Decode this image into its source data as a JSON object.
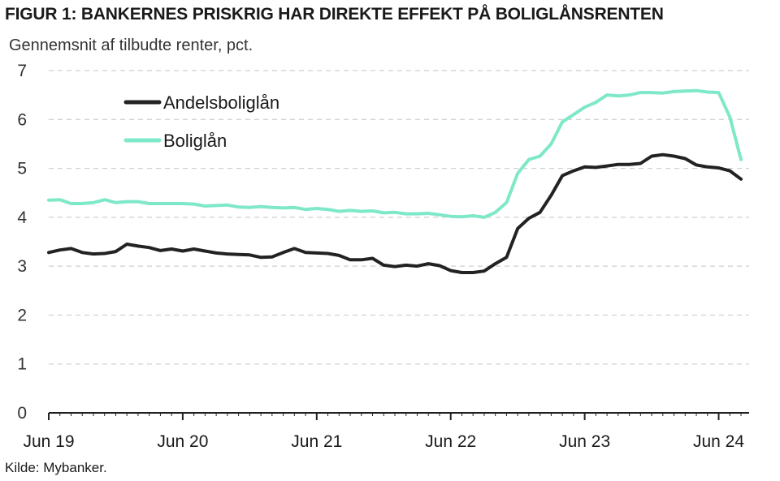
{
  "title": "FIGUR 1: BANKERNES PRISKRIG HAR DIREKTE EFFEKT PÅ BOLIGLÅNSRENTEN",
  "subtitle": "Gennemsnit af tilbudte renter, pct.",
  "source": "Kilde: Mybanker.",
  "chart_data": {
    "type": "line",
    "ylim": [
      0,
      7
    ],
    "yticks": [
      0,
      1,
      2,
      3,
      4,
      5,
      6,
      7
    ],
    "xticks": [
      "Jun 19",
      "Jun 20",
      "Jun 21",
      "Jun 22",
      "Jun 23",
      "Jun 24"
    ],
    "grid": true,
    "legend_position": "top-left",
    "x_start": "Jun 19",
    "x_end": "Jun 24",
    "series": [
      {
        "name": "Andelsboliglån",
        "color": "#222222",
        "values": [
          3.28,
          3.33,
          3.36,
          3.28,
          3.25,
          3.26,
          3.3,
          3.45,
          3.41,
          3.38,
          3.32,
          3.35,
          3.31,
          3.35,
          3.31,
          3.27,
          3.25,
          3.24,
          3.23,
          3.18,
          3.19,
          3.28,
          3.36,
          3.28,
          3.27,
          3.26,
          3.22,
          3.13,
          3.13,
          3.16,
          3.02,
          2.99,
          3.02,
          3.0,
          3.05,
          3.01,
          2.91,
          2.87,
          2.87,
          2.9,
          3.05,
          3.18,
          3.77,
          3.98,
          4.1,
          4.45,
          4.85,
          4.95,
          5.03,
          5.02,
          5.05,
          5.08,
          5.08,
          5.1,
          5.25,
          5.28,
          5.25,
          5.2,
          5.07,
          5.03,
          5.01,
          4.95,
          4.78
        ]
      },
      {
        "name": "Boliglån",
        "color": "#7ee8c8",
        "values": [
          4.35,
          4.36,
          4.28,
          4.28,
          4.3,
          4.36,
          4.3,
          4.32,
          4.32,
          4.28,
          4.28,
          4.28,
          4.28,
          4.27,
          4.23,
          4.24,
          4.25,
          4.21,
          4.2,
          4.22,
          4.2,
          4.19,
          4.2,
          4.16,
          4.18,
          4.16,
          4.12,
          4.14,
          4.12,
          4.13,
          4.09,
          4.1,
          4.07,
          4.07,
          4.08,
          4.05,
          4.02,
          4.01,
          4.03,
          4.0,
          4.1,
          4.3,
          4.9,
          5.18,
          5.25,
          5.5,
          5.95,
          6.1,
          6.25,
          6.35,
          6.5,
          6.48,
          6.5,
          6.55,
          6.55,
          6.54,
          6.57,
          6.58,
          6.59,
          6.56,
          6.55,
          6.05,
          5.18
        ]
      }
    ]
  }
}
